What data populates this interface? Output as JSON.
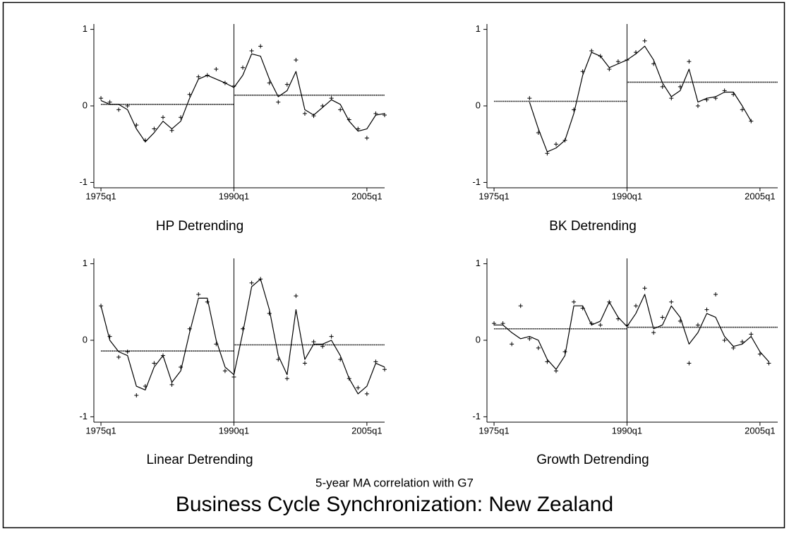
{
  "title": "Business Cycle Synchronization: New Zealand",
  "subtitle": "5-year MA correlation with G7",
  "chart_data": [
    {
      "type": "line",
      "title": "HP Detrending",
      "x": [
        1975,
        1976,
        1977,
        1978,
        1979,
        1980,
        1981,
        1982,
        1983,
        1984,
        1985,
        1986,
        1987,
        1988,
        1989,
        1990,
        1991,
        1992,
        1993,
        1994,
        1995,
        1996,
        1997,
        1998,
        1999,
        2000,
        2001,
        2002,
        2003,
        2004,
        2005,
        2006,
        2007
      ],
      "series": [
        {
          "style": "markers",
          "color": "#000000",
          "values": [
            0.1,
            0.05,
            -0.05,
            0.0,
            -0.25,
            -0.45,
            -0.3,
            -0.15,
            -0.32,
            -0.15,
            0.15,
            0.38,
            0.4,
            0.48,
            0.3,
            0.26,
            0.5,
            0.72,
            0.78,
            0.3,
            0.05,
            0.28,
            0.6,
            -0.1,
            -0.13,
            0.0,
            0.1,
            -0.05,
            -0.18,
            -0.3,
            -0.42,
            -0.1,
            -0.12
          ]
        },
        {
          "style": "line",
          "color": "#000000",
          "values": [
            0.07,
            0.02,
            0.02,
            -0.05,
            -0.3,
            -0.47,
            -0.35,
            -0.2,
            -0.3,
            -0.2,
            0.1,
            0.35,
            0.4,
            0.35,
            0.3,
            0.24,
            0.4,
            0.68,
            0.65,
            0.35,
            0.12,
            0.2,
            0.45,
            -0.05,
            -0.12,
            -0.02,
            0.08,
            0.02,
            -0.2,
            -0.33,
            -0.3,
            -0.12,
            -0.1
          ]
        }
      ],
      "mean_lines": [
        {
          "x": [
            1975,
            1990
          ],
          "value": 0.02
        },
        {
          "x": [
            1990,
            2007
          ],
          "value": 0.14
        }
      ],
      "vline": 1990,
      "xlim": [
        1974.2,
        2007
      ],
      "ylim": [
        -1.07,
        1.07
      ],
      "xticks": [
        {
          "value": 1975,
          "label": "1975q1"
        },
        {
          "value": 1990,
          "label": "1990q1"
        },
        {
          "value": 2005,
          "label": "2005q1"
        }
      ],
      "yticks": [
        -1,
        0,
        1
      ]
    },
    {
      "type": "line",
      "title": "BK Detrending",
      "x": [
        1979,
        1980,
        1981,
        1982,
        1983,
        1984,
        1985,
        1986,
        1987,
        1988,
        1989,
        1990,
        1991,
        1992,
        1993,
        1994,
        1995,
        1996,
        1997,
        1998,
        1999,
        2000,
        2001,
        2002,
        2003,
        2004
      ],
      "series": [
        {
          "style": "markers",
          "color": "#000000",
          "values": [
            0.1,
            -0.35,
            -0.62,
            -0.5,
            -0.45,
            -0.05,
            0.45,
            0.72,
            0.65,
            0.48,
            0.58,
            0.6,
            0.7,
            0.85,
            0.55,
            0.25,
            0.1,
            0.25,
            0.58,
            0.0,
            0.08,
            0.1,
            0.2,
            0.15,
            -0.05,
            -0.2
          ]
        },
        {
          "style": "line",
          "color": "#000000",
          "values": [
            0.05,
            -0.3,
            -0.6,
            -0.55,
            -0.45,
            -0.1,
            0.4,
            0.7,
            0.65,
            0.5,
            0.55,
            0.6,
            0.68,
            0.78,
            0.6,
            0.3,
            0.12,
            0.2,
            0.48,
            0.05,
            0.1,
            0.12,
            0.18,
            0.18,
            0.0,
            -0.2
          ]
        }
      ],
      "mean_lines": [
        {
          "x": [
            1975,
            1990
          ],
          "value": 0.06
        },
        {
          "x": [
            1990,
            2007
          ],
          "value": 0.31
        }
      ],
      "vline": 1990,
      "xlim": [
        1974.2,
        2007
      ],
      "ylim": [
        -1.07,
        1.07
      ],
      "xticks": [
        {
          "value": 1975,
          "label": "1975q1"
        },
        {
          "value": 1990,
          "label": "1990q1"
        },
        {
          "value": 2005,
          "label": "2005q1"
        }
      ],
      "yticks": [
        -1,
        0,
        1
      ]
    },
    {
      "type": "line",
      "title": "Linear Detrending",
      "x": [
        1975,
        1976,
        1977,
        1978,
        1979,
        1980,
        1981,
        1982,
        1983,
        1984,
        1985,
        1986,
        1987,
        1988,
        1989,
        1990,
        1991,
        1992,
        1993,
        1994,
        1995,
        1996,
        1997,
        1998,
        1999,
        2000,
        2001,
        2002,
        2003,
        2004,
        2005,
        2006,
        2007
      ],
      "series": [
        {
          "style": "markers",
          "color": "#000000",
          "values": [
            0.45,
            0.05,
            -0.22,
            -0.15,
            -0.72,
            -0.6,
            -0.3,
            -0.2,
            -0.58,
            -0.35,
            0.15,
            0.6,
            0.5,
            -0.05,
            -0.4,
            -0.48,
            0.15,
            0.75,
            0.8,
            0.35,
            -0.25,
            -0.5,
            0.58,
            -0.3,
            -0.02,
            -0.08,
            0.05,
            -0.25,
            -0.5,
            -0.62,
            -0.7,
            -0.28,
            -0.38
          ]
        },
        {
          "style": "line",
          "color": "#000000",
          "values": [
            0.45,
            0.0,
            -0.15,
            -0.2,
            -0.6,
            -0.65,
            -0.35,
            -0.2,
            -0.55,
            -0.4,
            0.1,
            0.55,
            0.55,
            0.0,
            -0.35,
            -0.45,
            0.1,
            0.7,
            0.8,
            0.4,
            -0.2,
            -0.45,
            0.4,
            -0.25,
            -0.05,
            -0.05,
            0.0,
            -0.2,
            -0.5,
            -0.7,
            -0.6,
            -0.3,
            -0.35
          ]
        }
      ],
      "mean_lines": [
        {
          "x": [
            1975,
            1990
          ],
          "value": -0.14
        },
        {
          "x": [
            1990,
            2007
          ],
          "value": -0.06
        }
      ],
      "vline": 1990,
      "xlim": [
        1974.2,
        2007
      ],
      "ylim": [
        -1.07,
        1.07
      ],
      "xticks": [
        {
          "value": 1975,
          "label": "1975q1"
        },
        {
          "value": 1990,
          "label": "1990q1"
        },
        {
          "value": 2005,
          "label": "2005q1"
        }
      ],
      "yticks": [
        -1,
        0,
        1
      ]
    },
    {
      "type": "line",
      "title": "Growth Detrending",
      "x": [
        1975,
        1976,
        1977,
        1978,
        1979,
        1980,
        1981,
        1982,
        1983,
        1984,
        1985,
        1986,
        1987,
        1988,
        1989,
        1990,
        1991,
        1992,
        1993,
        1994,
        1995,
        1996,
        1997,
        1998,
        1999,
        2000,
        2001,
        2002,
        2003,
        2004,
        2005,
        2006
      ],
      "series": [
        {
          "style": "markers",
          "color": "#000000",
          "values": [
            0.22,
            0.22,
            -0.05,
            0.45,
            0.02,
            -0.1,
            -0.28,
            -0.4,
            -0.15,
            0.5,
            0.42,
            0.22,
            0.2,
            0.5,
            0.28,
            0.2,
            0.45,
            0.68,
            0.1,
            0.3,
            0.5,
            0.25,
            -0.3,
            0.2,
            0.4,
            0.6,
            0.0,
            -0.1,
            -0.02,
            0.08,
            -0.18,
            -0.3
          ]
        },
        {
          "style": "line",
          "color": "#000000",
          "values": [
            0.2,
            0.2,
            0.1,
            0.02,
            0.05,
            0.0,
            -0.25,
            -0.38,
            -0.2,
            0.45,
            0.45,
            0.2,
            0.25,
            0.5,
            0.3,
            0.18,
            0.35,
            0.6,
            0.15,
            0.2,
            0.45,
            0.3,
            -0.05,
            0.1,
            0.35,
            0.3,
            0.05,
            -0.08,
            -0.05,
            0.05,
            -0.15,
            -0.28
          ]
        }
      ],
      "mean_lines": [
        {
          "x": [
            1975,
            1990
          ],
          "value": 0.15
        },
        {
          "x": [
            1990,
            2007
          ],
          "value": 0.17
        }
      ],
      "vline": 1990,
      "xlim": [
        1974.2,
        2007
      ],
      "ylim": [
        -1.07,
        1.07
      ],
      "xticks": [
        {
          "value": 1975,
          "label": "1975q1"
        },
        {
          "value": 1990,
          "label": "1990q1"
        },
        {
          "value": 2005,
          "label": "2005q1"
        }
      ],
      "yticks": [
        -1,
        0,
        1
      ]
    }
  ]
}
